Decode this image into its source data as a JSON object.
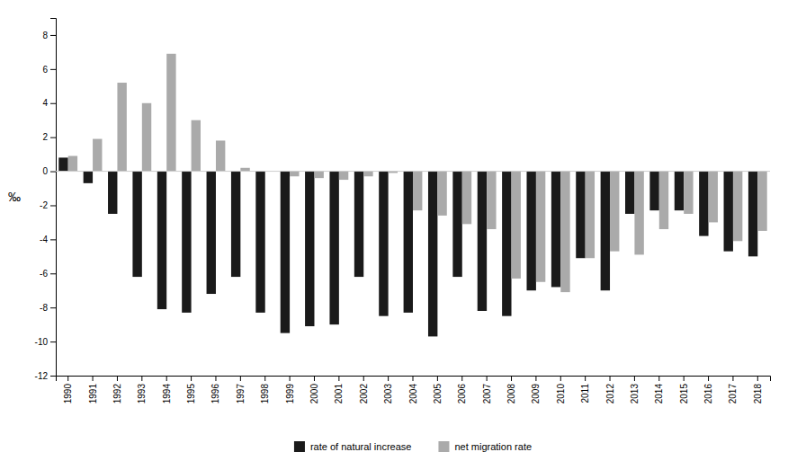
{
  "chart_data": {
    "type": "bar",
    "categories": [
      "1990",
      "1991",
      "1992",
      "1993",
      "1994",
      "1995",
      "1996",
      "1997",
      "1998",
      "1999",
      "2000",
      "2001",
      "2002",
      "2003",
      "2004",
      "2005",
      "2006",
      "2007",
      "2008",
      "2009",
      "2010",
      "2011",
      "2012",
      "2013",
      "2014",
      "2015",
      "2016",
      "2017",
      "2018"
    ],
    "series": [
      {
        "name": "rate of natural increase",
        "color": "#1a1a1a",
        "values": [
          0.8,
          -0.7,
          -2.5,
          -6.2,
          -8.1,
          -8.3,
          -7.2,
          -6.2,
          -8.3,
          -9.5,
          -9.1,
          -9.0,
          -6.2,
          -8.5,
          -8.3,
          -9.7,
          -6.2,
          -8.2,
          -8.5,
          -7.0,
          -6.8,
          -5.1,
          -7.0,
          -2.5,
          -2.3,
          -2.3,
          -3.8,
          -4.7,
          -5.0
        ]
      },
      {
        "name": "net migration rate",
        "color": "#aaaaaa",
        "values": [
          0.9,
          1.9,
          5.2,
          4.0,
          6.9,
          3.0,
          1.8,
          0.2,
          0.0,
          -0.3,
          -0.4,
          -0.5,
          -0.3,
          -0.1,
          -2.3,
          -2.6,
          -3.1,
          -3.4,
          -6.3,
          -6.5,
          -7.1,
          -5.1,
          -4.7,
          -4.9,
          -3.4,
          -2.5,
          -3.0,
          -4.1,
          -3.5
        ]
      }
    ],
    "ylabel": "‰",
    "ylim": [
      -12,
      9
    ],
    "yticks": [
      -12,
      -10,
      -8,
      -6,
      -4,
      -2,
      0,
      2,
      4,
      6,
      8
    ],
    "grid": false,
    "legend": "bottom"
  }
}
